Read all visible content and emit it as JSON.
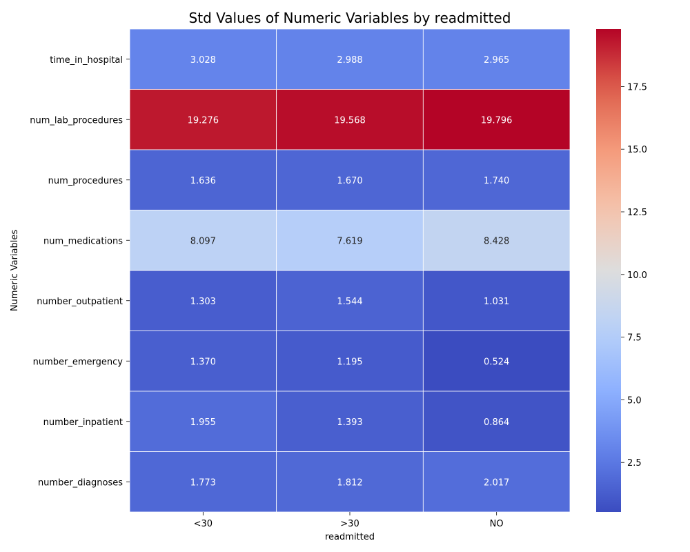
{
  "chart_data": {
    "type": "heatmap",
    "title": "Std Values of Numeric Variables by readmitted",
    "xlabel": "readmitted",
    "ylabel": "Numeric Variables",
    "columns": [
      "<30",
      ">30",
      "NO"
    ],
    "rows": [
      "time_in_hospital",
      "num_lab_procedures",
      "num_procedures",
      "num_medications",
      "number_outpatient",
      "number_emergency",
      "number_inpatient",
      "number_diagnoses"
    ],
    "values": [
      [
        3.028,
        2.988,
        2.965
      ],
      [
        19.276,
        19.568,
        19.796
      ],
      [
        1.636,
        1.67,
        1.74
      ],
      [
        8.097,
        7.619,
        8.428
      ],
      [
        1.303,
        1.544,
        1.031
      ],
      [
        1.37,
        1.195,
        0.524
      ],
      [
        1.955,
        1.393,
        0.864
      ],
      [
        1.773,
        1.812,
        2.017
      ]
    ],
    "colormap": "coolwarm",
    "colorbar": {
      "range": [
        0.524,
        19.796
      ],
      "ticks": [
        2.5,
        5.0,
        7.5,
        10.0,
        12.5,
        15.0,
        17.5
      ],
      "tick_labels": [
        "2.5",
        "5.0",
        "7.5",
        "10.0",
        "12.5",
        "15.0",
        "17.5"
      ]
    },
    "annot_text_light": "#ffffff",
    "annot_text_dark": "#262626",
    "grid_line_color": "#ffffff"
  }
}
